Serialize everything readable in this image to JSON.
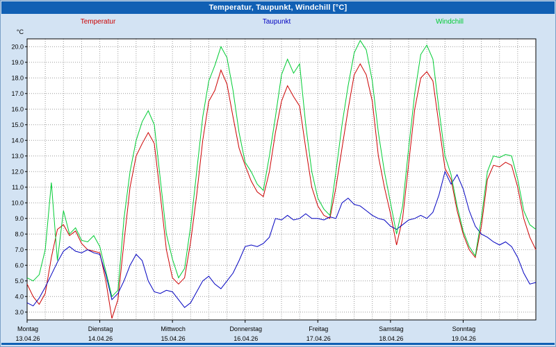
{
  "window": {
    "title": "Temperatur, Taupunkt, Windchill [°C]"
  },
  "colors": {
    "background": "#d3e3f3",
    "titlebar": "#1160b4",
    "titlebar_text": "#ffffff",
    "plot_bg": "#ffffff",
    "plot_border": "#000000",
    "grid": "#999999",
    "temperatur": "#cc0000",
    "taupunkt": "#0000c0",
    "windchill": "#00cc33"
  },
  "chart_data": {
    "type": "line",
    "title": "Temperatur, Taupunkt, Windchill [°C]",
    "y_unit": "°C",
    "y_min": 3.0,
    "y_max": 20.0,
    "y_tick_step": 1.0,
    "ylim": [
      2.5,
      20.5
    ],
    "x_total_hours": 168,
    "x_step_hours": 2,
    "grid": "dotted",
    "legend_position": "top",
    "x_days": [
      {
        "name": "Montag",
        "date": "13.04.26"
      },
      {
        "name": "Dienstag",
        "date": "14.04.26"
      },
      {
        "name": "Mittwoch",
        "date": "15.04.26"
      },
      {
        "name": "Donnerstag",
        "date": "16.04.26"
      },
      {
        "name": "Freitag",
        "date": "17.04.26"
      },
      {
        "name": "Samstag",
        "date": "18.04.26"
      },
      {
        "name": "Sonntag",
        "date": "19.04.26"
      }
    ],
    "series": [
      {
        "name": "Temperatur",
        "color": "#cc0000",
        "values": [
          4.8,
          4.0,
          3.5,
          4.2,
          6.5,
          8.3,
          8.6,
          7.9,
          8.2,
          7.4,
          7.0,
          6.9,
          6.8,
          5.0,
          2.6,
          3.8,
          7.5,
          11.0,
          13.0,
          13.8,
          14.5,
          13.8,
          10.5,
          7.0,
          5.2,
          4.8,
          5.2,
          7.5,
          10.5,
          14.0,
          16.5,
          17.2,
          18.5,
          17.6,
          15.5,
          13.5,
          12.4,
          11.4,
          10.7,
          10.4,
          12.0,
          14.5,
          16.5,
          17.5,
          16.8,
          16.2,
          13.5,
          11.0,
          9.8,
          9.2,
          9.0,
          11.0,
          13.5,
          16.0,
          18.2,
          18.9,
          18.2,
          16.5,
          13.0,
          11.0,
          9.3,
          7.3,
          9.0,
          12.5,
          16.0,
          18.0,
          18.4,
          17.8,
          15.0,
          12.2,
          11.5,
          9.5,
          8.0,
          7.0,
          6.5,
          8.5,
          11.5,
          12.4,
          12.3,
          12.6,
          12.4,
          11.0,
          9.0,
          7.8,
          7.0
        ]
      },
      {
        "name": "Taupunkt",
        "color": "#0000c0",
        "values": [
          3.6,
          3.4,
          3.9,
          4.6,
          5.4,
          6.2,
          6.9,
          7.2,
          6.9,
          6.8,
          7.0,
          6.8,
          6.7,
          5.4,
          3.8,
          4.2,
          5.0,
          6.0,
          6.7,
          6.3,
          5.0,
          4.3,
          4.2,
          4.4,
          4.3,
          3.8,
          3.3,
          3.6,
          4.3,
          5.0,
          5.3,
          4.8,
          4.5,
          5.0,
          5.5,
          6.3,
          7.2,
          7.3,
          7.2,
          7.4,
          7.8,
          9.0,
          8.9,
          9.2,
          8.9,
          9.0,
          9.3,
          9.0,
          9.0,
          8.9,
          9.1,
          9.0,
          10.0,
          10.3,
          9.9,
          9.8,
          9.5,
          9.2,
          9.0,
          8.9,
          8.5,
          8.3,
          8.6,
          8.9,
          9.0,
          9.2,
          9.0,
          9.4,
          10.5,
          12.0,
          11.2,
          11.8,
          10.9,
          9.5,
          8.5,
          8.0,
          7.8,
          7.5,
          7.3,
          7.5,
          7.2,
          6.5,
          5.5,
          4.8,
          4.9
        ]
      },
      {
        "name": "Windchill",
        "color": "#00cc33",
        "values": [
          5.2,
          5.0,
          5.4,
          7.0,
          11.3,
          6.3,
          9.5,
          8.0,
          8.4,
          7.6,
          7.5,
          7.9,
          7.2,
          5.6,
          4.0,
          4.4,
          9.0,
          12.0,
          14.0,
          15.2,
          15.9,
          15.0,
          11.5,
          8.0,
          6.4,
          5.2,
          5.8,
          8.5,
          12.0,
          15.5,
          17.8,
          18.8,
          20.0,
          19.3,
          17.2,
          14.5,
          12.6,
          12.0,
          11.2,
          10.8,
          13.0,
          15.5,
          18.2,
          19.2,
          18.3,
          18.9,
          15.0,
          12.0,
          10.3,
          9.6,
          9.2,
          12.0,
          15.0,
          17.5,
          19.6,
          20.4,
          19.8,
          17.8,
          14.5,
          12.0,
          10.0,
          8.0,
          9.8,
          13.5,
          17.0,
          19.5,
          20.1,
          19.2,
          16.0,
          13.0,
          11.8,
          9.8,
          8.2,
          7.2,
          6.6,
          9.0,
          12.0,
          13.0,
          12.9,
          13.1,
          13.0,
          11.5,
          9.5,
          8.6,
          8.3
        ]
      }
    ]
  }
}
